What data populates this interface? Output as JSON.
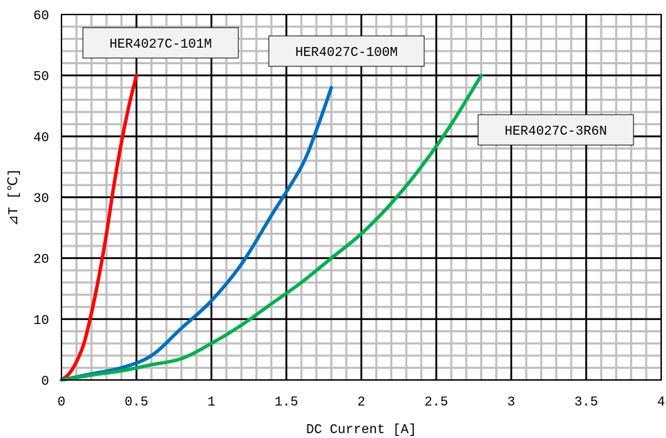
{
  "chart_data": {
    "type": "line",
    "title": "",
    "xlabel": "DC Current [A]",
    "ylabel": "⊿T [℃]",
    "xlim": [
      0,
      4
    ],
    "ylim": [
      0,
      60
    ],
    "xticks": [
      0,
      0.5,
      1,
      1.5,
      2,
      2.5,
      3,
      3.5,
      4
    ],
    "xtick_labels": [
      "0",
      "0.5",
      "1",
      "1.5",
      "2",
      "2.5",
      "3",
      "3.5",
      "4"
    ],
    "yticks": [
      0,
      10,
      20,
      30,
      40,
      50,
      60
    ],
    "ytick_labels": [
      "0",
      "10",
      "20",
      "30",
      "40",
      "50",
      "60"
    ],
    "grid": {
      "major": true,
      "minor": true,
      "minor_step_x": 0.1,
      "minor_step_y": 2
    },
    "series": [
      {
        "name": "HER4027C-101M",
        "color": "#ff0000",
        "x": [
          0,
          0.05,
          0.1,
          0.15,
          0.2,
          0.25,
          0.3,
          0.35,
          0.4,
          0.45,
          0.5
        ],
        "y": [
          0,
          1,
          3,
          6,
          11,
          17,
          24,
          32,
          39,
          45,
          50
        ]
      },
      {
        "name": "HER4027C-100M",
        "color": "#0070c0",
        "x": [
          0,
          0.2,
          0.4,
          0.6,
          0.8,
          1.0,
          1.2,
          1.4,
          1.6,
          1.7,
          1.8
        ],
        "y": [
          0,
          1,
          2,
          4,
          8.5,
          13,
          19,
          27,
          35,
          41,
          48
        ]
      },
      {
        "name": "HER4027C-3R6N",
        "color": "#00b050",
        "x": [
          0,
          0.2,
          0.4,
          0.6,
          0.8,
          1.0,
          1.2,
          1.4,
          1.6,
          1.8,
          2.0,
          2.2,
          2.4,
          2.6,
          2.8
        ],
        "y": [
          0,
          0.8,
          1.5,
          2.5,
          3.5,
          6,
          9,
          12.5,
          16,
          20,
          24,
          29,
          35,
          42,
          50
        ]
      }
    ],
    "annotations": [
      {
        "text": "HER4027C-101M",
        "series": "HER4027C-101M"
      },
      {
        "text": "HER4027C-100M",
        "series": "HER4027C-100M"
      },
      {
        "text": "HER4027C-3R6N",
        "series": "HER4027C-3R6N"
      }
    ]
  }
}
